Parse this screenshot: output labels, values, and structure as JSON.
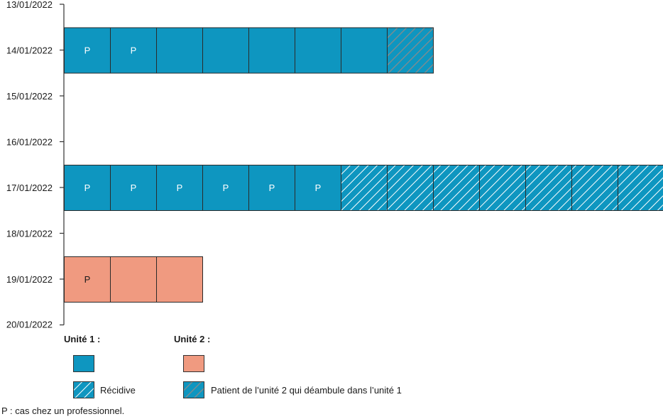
{
  "chart_data": {
    "type": "timeline-grid",
    "y_dates": [
      "13/01/2022",
      "14/01/2022",
      "15/01/2022",
      "16/01/2022",
      "17/01/2022",
      "18/01/2022",
      "19/01/2022",
      "20/01/2022"
    ],
    "rows": [
      {
        "date": "14/01/2022",
        "cells": [
          {
            "unit": "unite1",
            "professional": true,
            "recidive": false,
            "wander": false
          },
          {
            "unit": "unite1",
            "professional": true,
            "recidive": false,
            "wander": false
          },
          {
            "unit": "unite1",
            "professional": false,
            "recidive": false,
            "wander": false
          },
          {
            "unit": "unite1",
            "professional": false,
            "recidive": false,
            "wander": false
          },
          {
            "unit": "unite1",
            "professional": false,
            "recidive": false,
            "wander": false
          },
          {
            "unit": "unite1",
            "professional": false,
            "recidive": false,
            "wander": false
          },
          {
            "unit": "unite1",
            "professional": false,
            "recidive": false,
            "wander": false
          },
          {
            "unit": "unite2",
            "professional": false,
            "recidive": false,
            "wander": true
          }
        ]
      },
      {
        "date": "17/01/2022",
        "cells": [
          {
            "unit": "unite1",
            "professional": true,
            "recidive": false,
            "wander": false
          },
          {
            "unit": "unite1",
            "professional": true,
            "recidive": false,
            "wander": false
          },
          {
            "unit": "unite1",
            "professional": true,
            "recidive": false,
            "wander": false
          },
          {
            "unit": "unite1",
            "professional": true,
            "recidive": false,
            "wander": false
          },
          {
            "unit": "unite1",
            "professional": true,
            "recidive": false,
            "wander": false
          },
          {
            "unit": "unite1",
            "professional": true,
            "recidive": false,
            "wander": false
          },
          {
            "unit": "unite1",
            "professional": false,
            "recidive": true,
            "wander": false
          },
          {
            "unit": "unite1",
            "professional": false,
            "recidive": true,
            "wander": false
          },
          {
            "unit": "unite1",
            "professional": false,
            "recidive": true,
            "wander": false
          },
          {
            "unit": "unite1",
            "professional": false,
            "recidive": true,
            "wander": false
          },
          {
            "unit": "unite1",
            "professional": false,
            "recidive": true,
            "wander": false
          },
          {
            "unit": "unite1",
            "professional": false,
            "recidive": true,
            "wander": false
          },
          {
            "unit": "unite1",
            "professional": false,
            "recidive": true,
            "wander": false
          }
        ]
      },
      {
        "date": "19/01/2022",
        "cells": [
          {
            "unit": "unite2",
            "professional": true,
            "recidive": false,
            "wander": false
          },
          {
            "unit": "unite2",
            "professional": false,
            "recidive": false,
            "wander": false
          },
          {
            "unit": "unite2",
            "professional": false,
            "recidive": false,
            "wander": false
          }
        ]
      }
    ],
    "professional_marker": "P",
    "colors": {
      "unite1": "#0e96c0",
      "unite2": "#f09a80",
      "hatch": "#ffffff",
      "hatch_wander": "#8a8a8a"
    }
  },
  "legend": {
    "unite1_title": "Unité 1 :",
    "unite2_title": "Unité 2 :",
    "recidive_label": "Récidive",
    "wander_label": "Patient de l’unité 2 qui déambule dans l’unité 1"
  },
  "footnote": "P : cas chez un professionnel."
}
